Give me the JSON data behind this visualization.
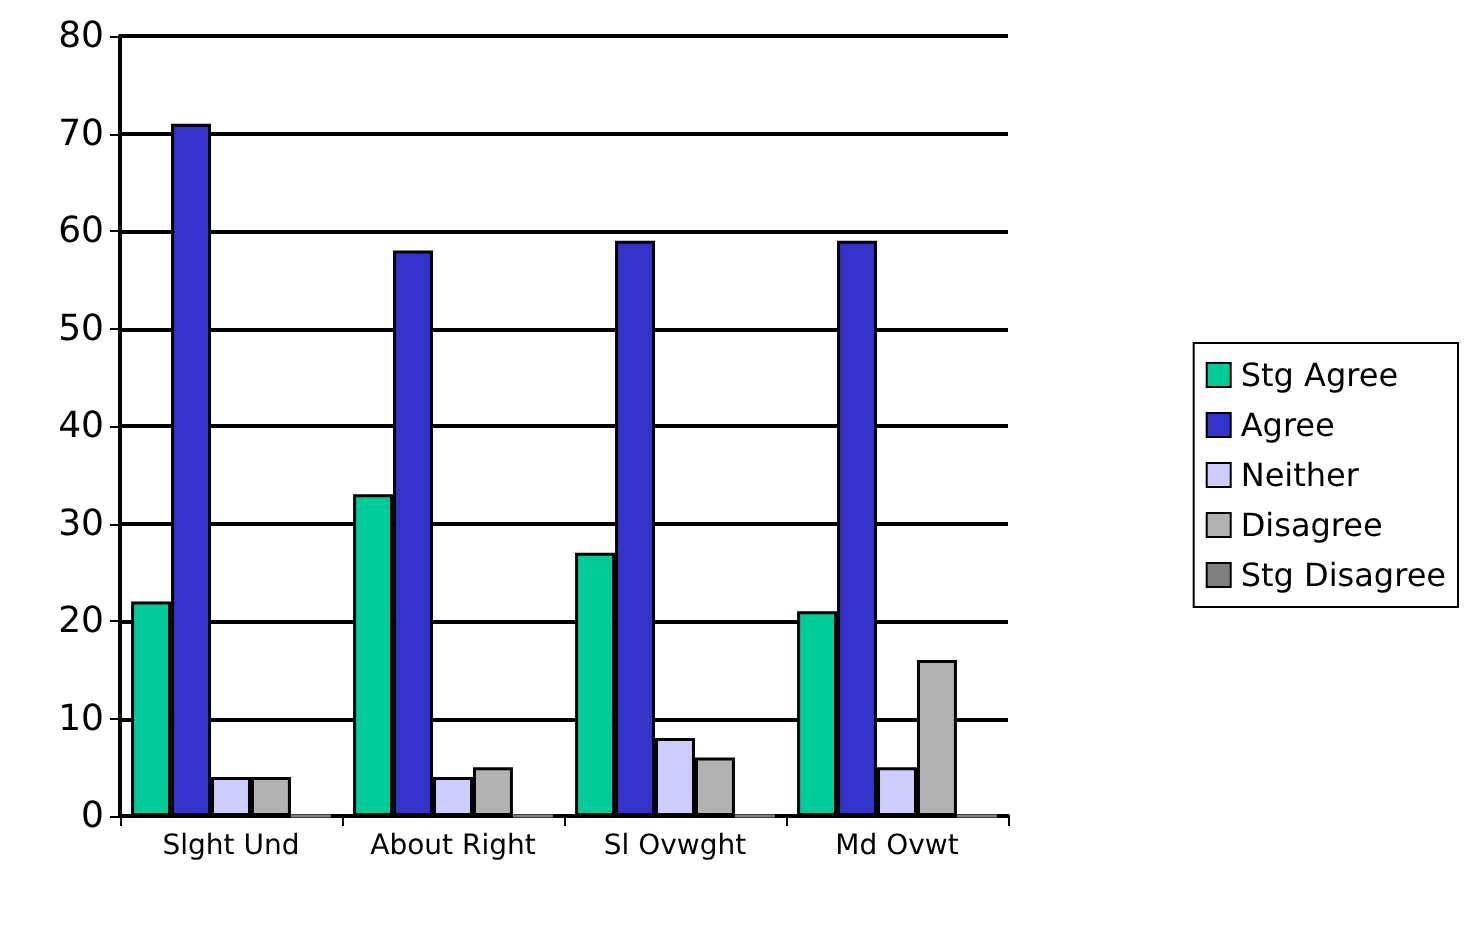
{
  "chart_data": {
    "type": "bar",
    "categories": [
      "Slght Und",
      "About Right",
      "Sl Ovwght",
      "Md Ovwt"
    ],
    "series": [
      {
        "name": "Stg Agree",
        "color": "#00cc99",
        "values": [
          22,
          33,
          27,
          21
        ]
      },
      {
        "name": "Agree",
        "color": "#3333cc",
        "values": [
          71,
          58,
          59,
          59
        ]
      },
      {
        "name": "Neither",
        "color": "#ccccff",
        "values": [
          4,
          4,
          8,
          5
        ]
      },
      {
        "name": "Disagree",
        "color": "#b2b2b2",
        "values": [
          4,
          5,
          6,
          16
        ]
      },
      {
        "name": "Stg Disagree",
        "color": "#808080",
        "values": [
          0,
          0,
          0,
          0
        ]
      }
    ],
    "ylim": [
      0,
      80
    ],
    "yticks": [
      0,
      10,
      20,
      30,
      40,
      50,
      60,
      70,
      80
    ],
    "grid": "y",
    "legend": "right"
  }
}
